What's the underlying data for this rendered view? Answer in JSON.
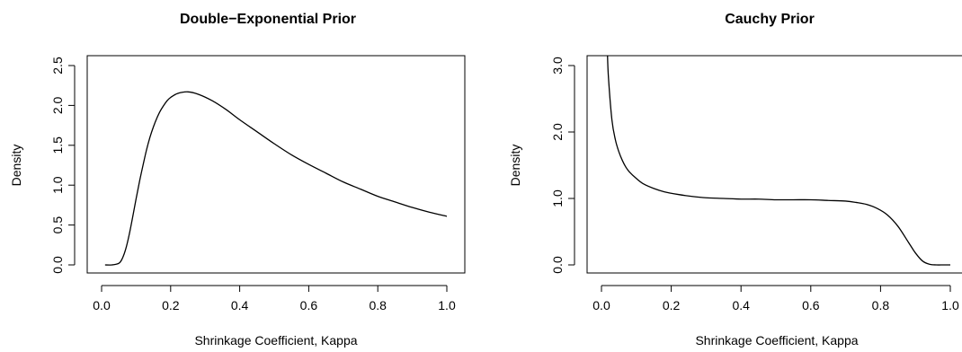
{
  "chart_data": [
    {
      "type": "line",
      "title": "Double−Exponential Prior",
      "xlabel": "Shrinkage Coefficient, Kappa",
      "ylabel": "Density",
      "xlim": [
        0.0,
        1.0
      ],
      "ylim": [
        0.0,
        2.5
      ],
      "xticks": [
        "0.0",
        "0.2",
        "0.4",
        "0.6",
        "0.8",
        "1.0"
      ],
      "yticks": [
        "0.0",
        "0.5",
        "1.0",
        "1.5",
        "2.0",
        "2.5"
      ],
      "grid": false,
      "frame": "box",
      "series": [
        {
          "x": [
            0.01,
            0.03,
            0.05,
            0.06,
            0.07,
            0.08,
            0.09,
            0.1,
            0.11,
            0.12,
            0.13,
            0.14,
            0.15,
            0.16,
            0.17,
            0.18,
            0.19,
            0.2,
            0.22,
            0.25,
            0.28,
            0.32,
            0.36,
            0.4,
            0.45,
            0.5,
            0.55,
            0.6,
            0.65,
            0.7,
            0.75,
            0.8,
            0.85,
            0.9,
            0.95,
            1.0
          ],
          "y": [
            0.0,
            0.0,
            0.02,
            0.08,
            0.2,
            0.38,
            0.6,
            0.83,
            1.05,
            1.25,
            1.44,
            1.6,
            1.73,
            1.84,
            1.93,
            2.0,
            2.06,
            2.1,
            2.15,
            2.17,
            2.14,
            2.06,
            1.95,
            1.82,
            1.67,
            1.52,
            1.38,
            1.26,
            1.15,
            1.04,
            0.95,
            0.86,
            0.79,
            0.72,
            0.66,
            0.61
          ]
        }
      ]
    },
    {
      "type": "line",
      "title": "Cauchy Prior",
      "xlabel": "Shrinkage Coefficient, Kappa",
      "ylabel": "Density",
      "xlim": [
        0.0,
        1.0
      ],
      "ylim": [
        0.0,
        3.0
      ],
      "xticks": [
        "0.0",
        "0.2",
        "0.4",
        "0.6",
        "0.8",
        "1.0"
      ],
      "yticks": [
        "0.0",
        "1.0",
        "2.0",
        "3.0"
      ],
      "grid": false,
      "frame": "box",
      "series": [
        {
          "x": [
            0.017,
            0.02,
            0.03,
            0.04,
            0.05,
            0.06,
            0.07,
            0.08,
            0.1,
            0.12,
            0.15,
            0.18,
            0.22,
            0.26,
            0.3,
            0.35,
            0.4,
            0.45,
            0.5,
            0.55,
            0.6,
            0.65,
            0.7,
            0.73,
            0.76,
            0.79,
            0.82,
            0.85,
            0.88,
            0.9,
            0.92,
            0.94,
            0.96,
            0.98,
            1.0
          ],
          "y": [
            3.2,
            2.82,
            2.18,
            1.88,
            1.7,
            1.57,
            1.47,
            1.4,
            1.3,
            1.22,
            1.15,
            1.1,
            1.06,
            1.03,
            1.01,
            1.0,
            0.99,
            0.99,
            0.98,
            0.98,
            0.98,
            0.97,
            0.96,
            0.94,
            0.91,
            0.85,
            0.75,
            0.58,
            0.34,
            0.18,
            0.06,
            0.01,
            0.0,
            0.0,
            0.0
          ]
        }
      ]
    }
  ]
}
